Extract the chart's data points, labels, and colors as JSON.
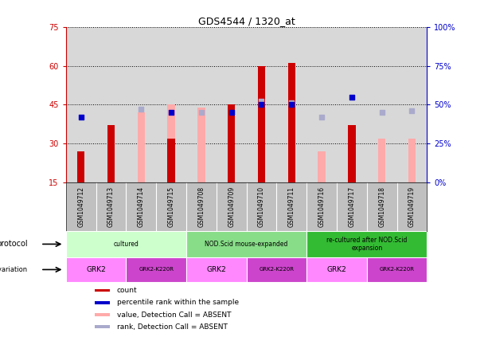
{
  "title": "GDS4544 / 1320_at",
  "samples": [
    "GSM1049712",
    "GSM1049713",
    "GSM1049714",
    "GSM1049715",
    "GSM1049708",
    "GSM1049709",
    "GSM1049710",
    "GSM1049711",
    "GSM1049716",
    "GSM1049717",
    "GSM1049718",
    "GSM1049719"
  ],
  "count_values": [
    27,
    37,
    null,
    32,
    null,
    45,
    60,
    61,
    null,
    37,
    null,
    null
  ],
  "absent_values": [
    null,
    null,
    42,
    45,
    44,
    null,
    null,
    null,
    27,
    null,
    32,
    32
  ],
  "percentile_rank": [
    42,
    null,
    null,
    45,
    null,
    45,
    50,
    50,
    null,
    55,
    null,
    null
  ],
  "absent_rank": [
    null,
    null,
    47,
    null,
    45,
    null,
    52,
    51,
    42,
    null,
    45,
    46
  ],
  "ylim_left": [
    15,
    75
  ],
  "ylim_right": [
    0,
    100
  ],
  "yticks_left": [
    15,
    30,
    45,
    60,
    75
  ],
  "ytick_labels_right": [
    "0%",
    "25%",
    "50%",
    "75%",
    "100%"
  ],
  "bar_color_red": "#cc0000",
  "bar_color_pink": "#ffaaaa",
  "dot_color_blue": "#0000cc",
  "dot_color_lightblue": "#aaaacc",
  "protocol_groups": [
    {
      "label": "cultured",
      "start": 0,
      "end": 4,
      "color": "#ccffcc"
    },
    {
      "label": "NOD.Scid mouse-expanded",
      "start": 4,
      "end": 8,
      "color": "#88dd88"
    },
    {
      "label": "re-cultured after NOD.Scid\nexpansion",
      "start": 8,
      "end": 12,
      "color": "#33bb33"
    }
  ],
  "genotype_groups": [
    {
      "label": "GRK2",
      "start": 0,
      "end": 2,
      "color": "#ff88ff"
    },
    {
      "label": "GRK2-K220R",
      "start": 2,
      "end": 4,
      "color": "#cc44cc"
    },
    {
      "label": "GRK2",
      "start": 4,
      "end": 6,
      "color": "#ff88ff"
    },
    {
      "label": "GRK2-K220R",
      "start": 6,
      "end": 8,
      "color": "#cc44cc"
    },
    {
      "label": "GRK2",
      "start": 8,
      "end": 10,
      "color": "#ff88ff"
    },
    {
      "label": "GRK2-K220R",
      "start": 10,
      "end": 12,
      "color": "#cc44cc"
    }
  ],
  "legend_items": [
    {
      "label": "count",
      "color": "#cc0000"
    },
    {
      "label": "percentile rank within the sample",
      "color": "#0000cc"
    },
    {
      "label": "value, Detection Call = ABSENT",
      "color": "#ffaaaa"
    },
    {
      "label": "rank, Detection Call = ABSENT",
      "color": "#aaaacc"
    }
  ],
  "left_axis_color": "#cc0000",
  "right_axis_color": "#0000cc",
  "chart_bg": "#d8d8d8",
  "xlabel_bg": "#c0c0c0"
}
